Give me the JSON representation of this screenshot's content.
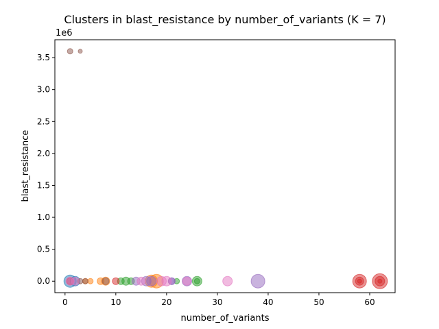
{
  "chart_data": {
    "type": "scatter",
    "title": "Clusters in blast_resistance by number_of_variants (K = 7)",
    "xlabel": "number_of_variants",
    "ylabel": "blast_resistance",
    "offset_label": "1e6",
    "xlim": [
      -2,
      65
    ],
    "ylim": [
      -180000,
      3780000
    ],
    "xticks": [
      0,
      10,
      20,
      30,
      40,
      50,
      60
    ],
    "yticks": [
      0,
      500000,
      1000000,
      1500000,
      2000000,
      2500000,
      3000000,
      3500000
    ],
    "ytick_labels": [
      "0.0",
      "0.5",
      "1.0",
      "1.5",
      "2.0",
      "2.5",
      "3.0",
      "3.5"
    ],
    "grid": false,
    "clusters": [
      {
        "color": "#1f77b4",
        "points": [
          {
            "x": 1,
            "y": 0,
            "s": 9
          },
          {
            "x": 2,
            "y": 0,
            "s": 7
          }
        ]
      },
      {
        "color": "#ff7f0e",
        "points": [
          {
            "x": 4,
            "y": 0,
            "s": 4
          },
          {
            "x": 5,
            "y": 0,
            "s": 4
          },
          {
            "x": 7,
            "y": 0,
            "s": 5
          },
          {
            "x": 8,
            "y": 0,
            "s": 6
          },
          {
            "x": 17,
            "y": 0,
            "s": 9
          },
          {
            "x": 18,
            "y": 0,
            "s": 10
          }
        ]
      },
      {
        "color": "#2ca02c",
        "points": [
          {
            "x": 11,
            "y": 0,
            "s": 5
          },
          {
            "x": 12,
            "y": 0,
            "s": 6
          },
          {
            "x": 13,
            "y": 0,
            "s": 5
          },
          {
            "x": 22,
            "y": 0,
            "s": 4
          },
          {
            "x": 26,
            "y": 0,
            "s": 7
          },
          {
            "x": 26,
            "y": 0,
            "s": 4
          }
        ]
      },
      {
        "color": "#d62728",
        "points": [
          {
            "x": 1,
            "y": 0,
            "s": 5
          },
          {
            "x": 10,
            "y": 0,
            "s": 5
          },
          {
            "x": 58,
            "y": 0,
            "s": 10
          },
          {
            "x": 58,
            "y": 0,
            "s": 6
          },
          {
            "x": 58,
            "y": 0,
            "s": 3
          },
          {
            "x": 62,
            "y": 0,
            "s": 11
          },
          {
            "x": 62,
            "y": 0,
            "s": 7
          },
          {
            "x": 62,
            "y": 0,
            "s": 3
          }
        ]
      },
      {
        "color": "#9467bd",
        "points": [
          {
            "x": 14,
            "y": 0,
            "s": 6
          },
          {
            "x": 16,
            "y": 0,
            "s": 7
          },
          {
            "x": 17,
            "y": 0,
            "s": 7
          },
          {
            "x": 21,
            "y": 0,
            "s": 5
          },
          {
            "x": 21,
            "y": 0,
            "s": 5
          },
          {
            "x": 24,
            "y": 0,
            "s": 7
          },
          {
            "x": 38,
            "y": 0,
            "s": 10
          }
        ]
      },
      {
        "color": "#8c564b",
        "points": [
          {
            "x": 1,
            "y": 3600000,
            "s": 4
          },
          {
            "x": 3,
            "y": 3600000,
            "s": 3
          },
          {
            "x": 3,
            "y": 0,
            "s": 4
          },
          {
            "x": 4,
            "y": 0,
            "s": 4
          },
          {
            "x": 8,
            "y": 0,
            "s": 5
          }
        ]
      },
      {
        "color": "#e377c2",
        "points": [
          {
            "x": 1,
            "y": 0,
            "s": 6
          },
          {
            "x": 2,
            "y": 0,
            "s": 6
          },
          {
            "x": 15,
            "y": 0,
            "s": 6
          },
          {
            "x": 19,
            "y": 0,
            "s": 7
          },
          {
            "x": 20,
            "y": 0,
            "s": 7
          },
          {
            "x": 24,
            "y": 0,
            "s": 6
          },
          {
            "x": 32,
            "y": 0,
            "s": 7
          }
        ]
      }
    ]
  }
}
